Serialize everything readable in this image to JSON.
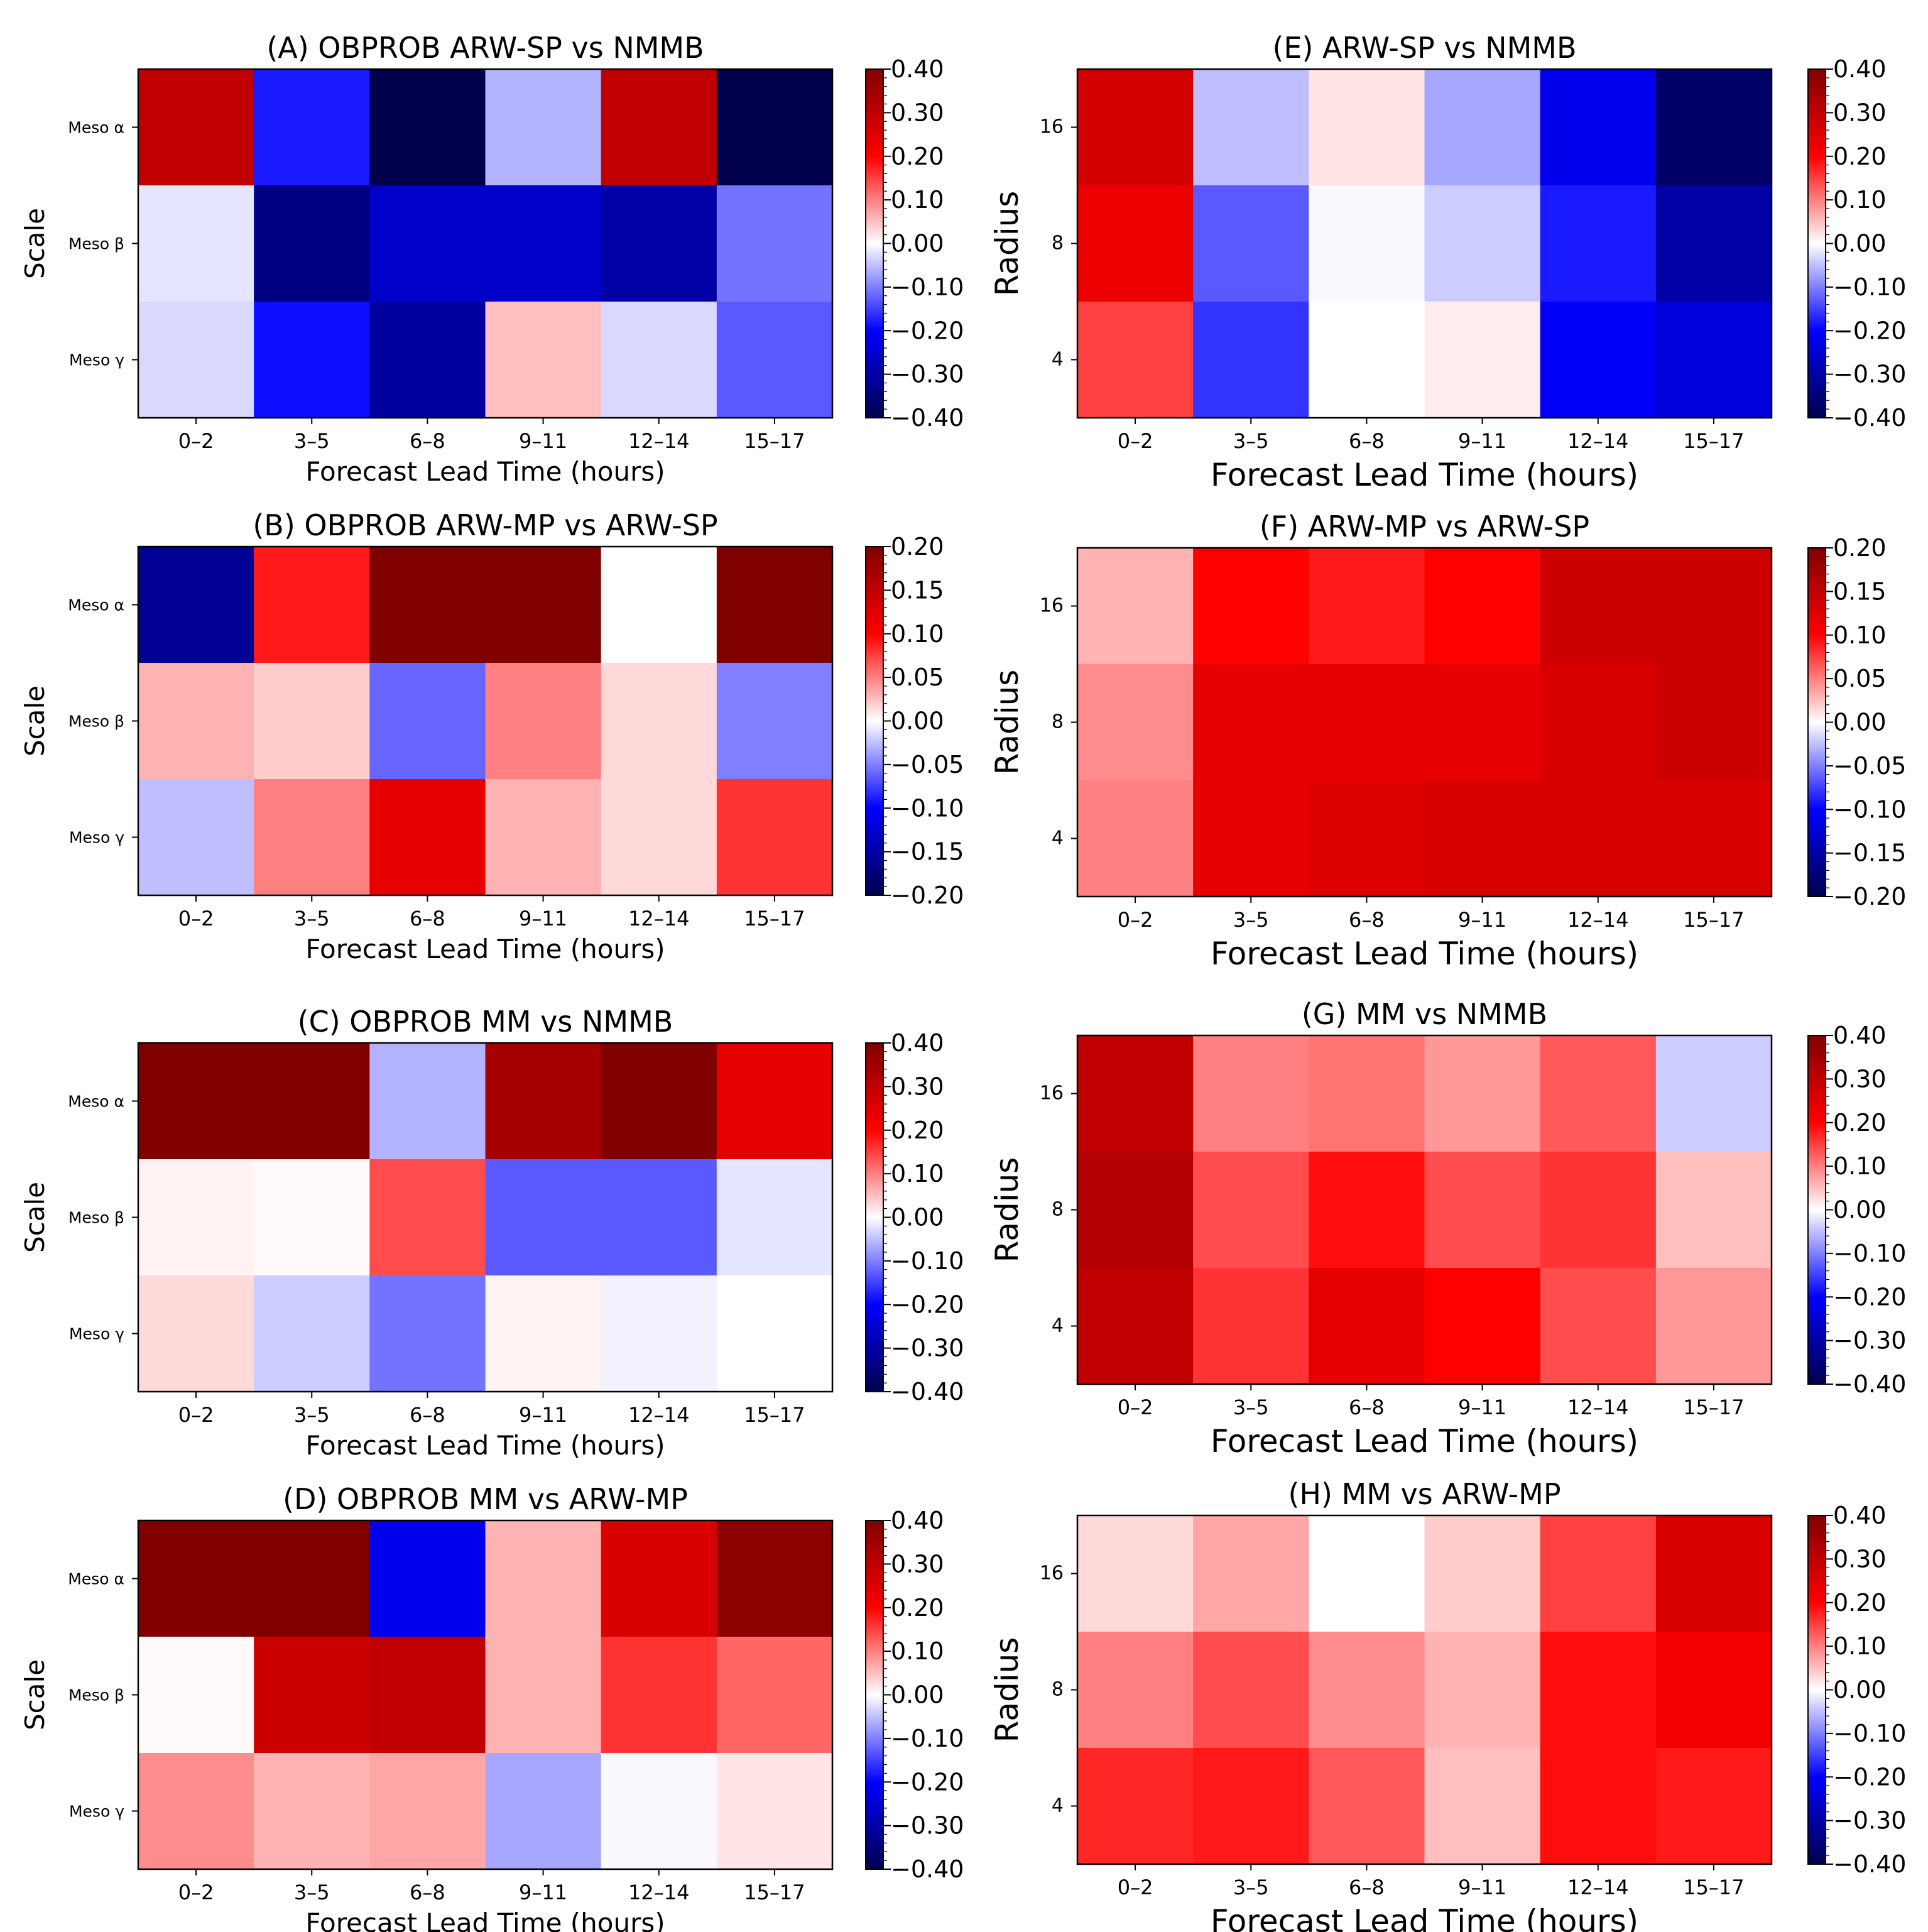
{
  "chart_data": [
    {
      "id": "A",
      "type": "heatmap",
      "title": "(A) OBPROB ARW-SP vs NMMB",
      "xlabel": "Forecast Lead Time (hours)",
      "ylabel": "Scale",
      "categories": [
        "0–2",
        "3–5",
        "6–8",
        "9–11",
        "12–14",
        "15–17"
      ],
      "rows": [
        "Meso α",
        "Meso β",
        "Meso γ"
      ],
      "values": [
        [
          0.3,
          -0.18,
          -0.4,
          -0.06,
          0.3,
          -0.4
        ],
        [
          -0.02,
          -0.34,
          -0.26,
          -0.26,
          -0.3,
          -0.11
        ],
        [
          -0.03,
          -0.19,
          -0.31,
          0.05,
          -0.03,
          -0.13
        ]
      ],
      "vmin": -0.4,
      "vmax": 0.4,
      "colorbar_ticks": [
        "0.40",
        "0.30",
        "0.20",
        "0.10",
        "0.00",
        "−0.10",
        "−0.20",
        "−0.30",
        "−0.40"
      ]
    },
    {
      "id": "B",
      "type": "heatmap",
      "title": "(B) OBPROB ARW-MP vs ARW-SP",
      "xlabel": "Forecast Lead Time (hours)",
      "ylabel": "Scale",
      "categories": [
        "0–2",
        "3–5",
        "6–8",
        "9–11",
        "12–14",
        "15–17"
      ],
      "rows": [
        "Meso α",
        "Meso β",
        "Meso γ"
      ],
      "values": [
        [
          -0.16,
          0.09,
          0.2,
          0.2,
          0.0,
          0.2
        ],
        [
          0.03,
          0.02,
          -0.06,
          0.05,
          0.015,
          -0.05
        ],
        [
          -0.025,
          0.05,
          0.12,
          0.03,
          0.015,
          0.08
        ]
      ],
      "vmin": -0.2,
      "vmax": 0.2,
      "colorbar_ticks": [
        "0.20",
        "0.15",
        "0.10",
        "0.05",
        "0.00",
        "−0.05",
        "−0.10",
        "−0.15",
        "−0.20"
      ]
    },
    {
      "id": "C",
      "type": "heatmap",
      "title": "(C) OBPROB MM vs NMMB",
      "xlabel": "Forecast Lead Time (hours)",
      "ylabel": "Scale",
      "categories": [
        "0–2",
        "3–5",
        "6–8",
        "9–11",
        "12–14",
        "15–17"
      ],
      "rows": [
        "Meso α",
        "Meso β",
        "Meso γ"
      ],
      "values": [
        [
          0.4,
          0.4,
          -0.06,
          0.34,
          0.4,
          0.24
        ],
        [
          0.01,
          0.005,
          0.14,
          -0.13,
          -0.13,
          -0.02
        ],
        [
          0.03,
          -0.04,
          -0.11,
          0.01,
          -0.01,
          0.0
        ]
      ],
      "vmin": -0.4,
      "vmax": 0.4,
      "colorbar_ticks": [
        "0.40",
        "0.30",
        "0.20",
        "0.10",
        "0.00",
        "−0.10",
        "−0.20",
        "−0.30",
        "−0.40"
      ]
    },
    {
      "id": "D",
      "type": "heatmap",
      "title": "(D) OBPROB MM vs ARW-MP",
      "xlabel": "Forecast Lead Time (hours)",
      "ylabel": "Scale",
      "categories": [
        "0–2",
        "3–5",
        "6–8",
        "9–11",
        "12–14",
        "15–17"
      ],
      "rows": [
        "Meso α",
        "Meso β",
        "Meso γ"
      ],
      "values": [
        [
          0.4,
          0.4,
          -0.22,
          0.06,
          0.26,
          0.38
        ],
        [
          0.005,
          0.28,
          0.3,
          0.06,
          0.16,
          0.12
        ],
        [
          0.09,
          0.06,
          0.07,
          -0.07,
          -0.005,
          0.02
        ]
      ],
      "vmin": -0.4,
      "vmax": 0.4,
      "colorbar_ticks": [
        "0.40",
        "0.30",
        "0.20",
        "0.10",
        "0.00",
        "−0.10",
        "−0.20",
        "−0.30",
        "−0.40"
      ]
    },
    {
      "id": "E",
      "type": "heatmap",
      "title": "(E) ARW-SP vs NMMB",
      "xlabel": "Forecast Lead Time (hours)",
      "ylabel": "Radius",
      "categories": [
        "0–2",
        "3–5",
        "6–8",
        "9–11",
        "12–14",
        "15–17"
      ],
      "rows": [
        "16",
        "8",
        "4"
      ],
      "values": [
        [
          0.27,
          -0.05,
          0.02,
          -0.07,
          -0.22,
          -0.37
        ],
        [
          0.23,
          -0.13,
          -0.005,
          -0.04,
          -0.18,
          -0.3
        ],
        [
          0.15,
          -0.16,
          0.0,
          0.015,
          -0.21,
          -0.24
        ]
      ],
      "vmin": -0.4,
      "vmax": 0.4,
      "colorbar_ticks": [
        "0.40",
        "0.30",
        "0.20",
        "0.10",
        "0.00",
        "−0.10",
        "−0.20",
        "−0.30",
        "−0.40"
      ]
    },
    {
      "id": "F",
      "type": "heatmap",
      "title": "(F) ARW-MP vs ARW-SP",
      "xlabel": "Forecast Lead Time (hours)",
      "ylabel": "Radius",
      "categories": [
        "0–2",
        "3–5",
        "6–8",
        "9–11",
        "12–14",
        "15–17"
      ],
      "rows": [
        "16",
        "8",
        "4"
      ],
      "values": [
        [
          0.03,
          0.1,
          0.09,
          0.1,
          0.14,
          0.14
        ],
        [
          0.045,
          0.12,
          0.12,
          0.12,
          0.13,
          0.14
        ],
        [
          0.05,
          0.12,
          0.125,
          0.13,
          0.13,
          0.13
        ]
      ],
      "vmin": -0.2,
      "vmax": 0.2,
      "colorbar_ticks": [
        "0.20",
        "0.15",
        "0.10",
        "0.05",
        "0.00",
        "−0.05",
        "−0.10",
        "−0.15",
        "−0.20"
      ]
    },
    {
      "id": "G",
      "type": "heatmap",
      "title": "(G) MM vs NMMB",
      "xlabel": "Forecast Lead Time (hours)",
      "ylabel": "Radius",
      "categories": [
        "0–2",
        "3–5",
        "6–8",
        "9–11",
        "12–14",
        "15–17"
      ],
      "rows": [
        "16",
        "8",
        "4"
      ],
      "values": [
        [
          0.3,
          0.1,
          0.11,
          0.08,
          0.13,
          -0.04
        ],
        [
          0.32,
          0.14,
          0.19,
          0.14,
          0.16,
          0.05
        ],
        [
          0.3,
          0.16,
          0.24,
          0.2,
          0.14,
          0.08
        ]
      ],
      "vmin": -0.4,
      "vmax": 0.4,
      "colorbar_ticks": [
        "0.40",
        "0.30",
        "0.20",
        "0.10",
        "0.00",
        "−0.10",
        "−0.20",
        "−0.30",
        "−0.40"
      ]
    },
    {
      "id": "H",
      "type": "heatmap",
      "title": "(H) MM vs ARW-MP",
      "xlabel": "Forecast Lead Time (hours)",
      "ylabel": "Radius",
      "categories": [
        "0–2",
        "3–5",
        "6–8",
        "9–11",
        "12–14",
        "15–17"
      ],
      "rows": [
        "16",
        "8",
        "4"
      ],
      "values": [
        [
          0.03,
          0.07,
          0.0,
          0.04,
          0.15,
          0.26
        ],
        [
          0.1,
          0.14,
          0.09,
          0.06,
          0.19,
          0.22
        ],
        [
          0.17,
          0.18,
          0.13,
          0.05,
          0.19,
          0.18
        ]
      ],
      "vmin": -0.4,
      "vmax": 0.4,
      "colorbar_ticks": [
        "0.40",
        "0.30",
        "0.20",
        "0.10",
        "0.00",
        "−0.10",
        "−0.20",
        "−0.30",
        "−0.40"
      ]
    }
  ]
}
